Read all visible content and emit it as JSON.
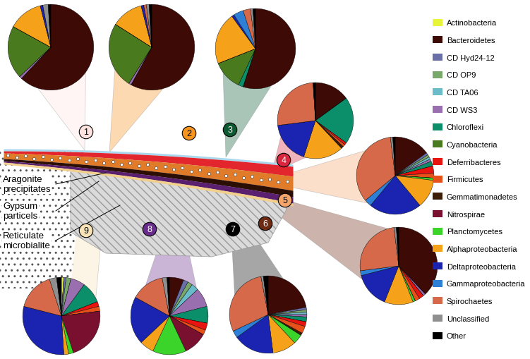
{
  "chart_data": [
    {
      "type": "pie",
      "title": "1",
      "legend": "center right",
      "categories": [
        "Actinobacteria",
        "Bacteroidetes",
        "CD Hyd24-12",
        "CD OP9",
        "CD TA06",
        "CD WS3",
        "Chloroflexi",
        "Cyanobacteria",
        "Deferribacteres",
        "Firmicutes",
        "Gemmatimonadetes",
        "Nitrospirae",
        "Planctomycetes",
        "Alphaproteobacteria",
        "Deltaproteobacteria",
        "Gammaproteobacteria",
        "Spirochaetes",
        "Unclassified",
        "Other"
      ],
      "colors": [
        "#e6f53a",
        "#3d0a05",
        "#6b6fa8",
        "#7aa86b",
        "#6bbcc9",
        "#9a6fb0",
        "#0a8f6a",
        "#4a7a1e",
        "#e8140f",
        "#e8501a",
        "#3b1e05",
        "#7a1030",
        "#3ad42a",
        "#f5a21a",
        "#1a24b0",
        "#2e7fd6",
        "#d6694a",
        "#8f8f8f",
        "#000000"
      ],
      "values": [
        0,
        62,
        0,
        0,
        0,
        1,
        0,
        20,
        0,
        0,
        0,
        0,
        0,
        13,
        1,
        0,
        0,
        2,
        1
      ]
    },
    {
      "type": "pie",
      "title": "2",
      "categories": [
        "Actinobacteria",
        "Bacteroidetes",
        "CD Hyd24-12",
        "CD OP9",
        "CD TA06",
        "CD WS3",
        "Chloroflexi",
        "Cyanobacteria",
        "Deferribacteres",
        "Firmicutes",
        "Gemmatimonadetes",
        "Nitrospirae",
        "Planctomycetes",
        "Alphaproteobacteria",
        "Deltaproteobacteria",
        "Gammaproteobacteria",
        "Spirochaetes",
        "Unclassified",
        "Other"
      ],
      "colors": [
        "#e6f53a",
        "#3d0a05",
        "#6b6fa8",
        "#7aa86b",
        "#6bbcc9",
        "#9a6fb0",
        "#0a8f6a",
        "#4a7a1e",
        "#e8140f",
        "#e8501a",
        "#3b1e05",
        "#7a1030",
        "#3ad42a",
        "#f5a21a",
        "#1a24b0",
        "#2e7fd6",
        "#d6694a",
        "#8f8f8f",
        "#000000"
      ],
      "values": [
        0,
        58,
        0,
        0,
        0,
        1,
        0,
        25,
        0,
        0,
        0,
        0,
        0,
        12,
        1,
        0,
        1,
        1,
        1
      ]
    },
    {
      "type": "pie",
      "title": "3",
      "categories": [
        "Actinobacteria",
        "Bacteroidetes",
        "CD Hyd24-12",
        "CD OP9",
        "CD TA06",
        "CD WS3",
        "Chloroflexi",
        "Cyanobacteria",
        "Deferribacteres",
        "Firmicutes",
        "Gemmatimonadetes",
        "Nitrospirae",
        "Planctomycetes",
        "Alphaproteobacteria",
        "Deltaproteobacteria",
        "Gammaproteobacteria",
        "Spirochaetes",
        "Unclassified",
        "Other"
      ],
      "colors": [
        "#e6f53a",
        "#3d0a05",
        "#6b6fa8",
        "#7aa86b",
        "#6bbcc9",
        "#9a6fb0",
        "#0a8f6a",
        "#4a7a1e",
        "#e8140f",
        "#e8501a",
        "#3b1e05",
        "#7a1030",
        "#3ad42a",
        "#f5a21a",
        "#1a24b0",
        "#2e7fd6",
        "#d6694a",
        "#8f8f8f",
        "#000000"
      ],
      "values": [
        0,
        55,
        0,
        0,
        0,
        0,
        2,
        12,
        0,
        0,
        0,
        0,
        0,
        21,
        1,
        4,
        3,
        1,
        1
      ]
    },
    {
      "type": "pie",
      "title": "4",
      "categories": [
        "Actinobacteria",
        "Bacteroidetes",
        "CD Hyd24-12",
        "CD OP9",
        "CD TA06",
        "CD WS3",
        "Chloroflexi",
        "Cyanobacteria",
        "Deferribacteres",
        "Firmicutes",
        "Gemmatimonadetes",
        "Nitrospirae",
        "Planctomycetes",
        "Alphaproteobacteria",
        "Deltaproteobacteria",
        "Gammaproteobacteria",
        "Spirochaetes",
        "Unclassified",
        "Other"
      ],
      "colors": [
        "#e6f53a",
        "#3d0a05",
        "#6b6fa8",
        "#7aa86b",
        "#6bbcc9",
        "#9a6fb0",
        "#0a8f6a",
        "#4a7a1e",
        "#e8140f",
        "#e8501a",
        "#3b1e05",
        "#7a1030",
        "#3ad42a",
        "#f5a21a",
        "#1a24b0",
        "#2e7fd6",
        "#d6694a",
        "#8f8f8f",
        "#000000"
      ],
      "values": [
        0,
        15,
        0,
        0,
        0,
        0,
        20,
        0,
        1,
        1,
        1,
        0,
        0,
        17,
        18,
        0,
        26,
        0,
        1
      ]
    },
    {
      "type": "pie",
      "title": "5",
      "categories": [
        "Actinobacteria",
        "Bacteroidetes",
        "CD Hyd24-12",
        "CD OP9",
        "CD TA06",
        "CD WS3",
        "Chloroflexi",
        "Cyanobacteria",
        "Deferribacteres",
        "Firmicutes",
        "Gemmatimonadetes",
        "Nitrospirae",
        "Planctomycetes",
        "Alphaproteobacteria",
        "Deltaproteobacteria",
        "Gammaproteobacteria",
        "Spirochaetes",
        "Unclassified",
        "Other"
      ],
      "colors": [
        "#e6f53a",
        "#3d0a05",
        "#6b6fa8",
        "#7aa86b",
        "#6bbcc9",
        "#9a6fb0",
        "#0a8f6a",
        "#4a7a1e",
        "#e8140f",
        "#e8501a",
        "#3b1e05",
        "#7a1030",
        "#3ad42a",
        "#f5a21a",
        "#1a24b0",
        "#2e7fd6",
        "#d6694a",
        "#8f8f8f",
        "#000000"
      ],
      "values": [
        0,
        15,
        1,
        1,
        1,
        1,
        2,
        0,
        3,
        2,
        0,
        0,
        1,
        12,
        22,
        3,
        34,
        1,
        1
      ]
    },
    {
      "type": "pie",
      "title": "6",
      "categories": [
        "Actinobacteria",
        "Bacteroidetes",
        "CD Hyd24-12",
        "CD OP9",
        "CD TA06",
        "CD WS3",
        "Chloroflexi",
        "Cyanobacteria",
        "Deferribacteres",
        "Firmicutes",
        "Gemmatimonadetes",
        "Nitrospirae",
        "Planctomycetes",
        "Alphaproteobacteria",
        "Deltaproteobacteria",
        "Gammaproteobacteria",
        "Spirochaetes",
        "Unclassified",
        "Other"
      ],
      "colors": [
        "#e6f53a",
        "#3d0a05",
        "#6b6fa8",
        "#7aa86b",
        "#6bbcc9",
        "#9a6fb0",
        "#0a8f6a",
        "#4a7a1e",
        "#e8140f",
        "#e8501a",
        "#3b1e05",
        "#7a1030",
        "#3ad42a",
        "#f5a21a",
        "#1a24b0",
        "#2e7fd6",
        "#d6694a",
        "#8f8f8f",
        "#000000"
      ],
      "values": [
        0,
        38,
        0,
        0,
        0,
        1,
        0,
        0,
        2,
        2,
        0,
        0,
        1,
        12,
        15,
        2,
        25,
        1,
        1
      ]
    },
    {
      "type": "pie",
      "title": "7",
      "categories": [
        "Actinobacteria",
        "Bacteroidetes",
        "CD Hyd24-12",
        "CD OP9",
        "CD TA06",
        "CD WS3",
        "Chloroflexi",
        "Cyanobacteria",
        "Deferribacteres",
        "Firmicutes",
        "Gemmatimonadetes",
        "Nitrospirae",
        "Planctomycetes",
        "Alphaproteobacteria",
        "Deltaproteobacteria",
        "Gammaproteobacteria",
        "Spirochaetes",
        "Unclassified",
        "Other"
      ],
      "colors": [
        "#e6f53a",
        "#3d0a05",
        "#6b6fa8",
        "#7aa86b",
        "#6bbcc9",
        "#9a6fb0",
        "#0a8f6a",
        "#4a7a1e",
        "#e8140f",
        "#e8501a",
        "#3b1e05",
        "#7a1030",
        "#3ad42a",
        "#f5a21a",
        "#1a24b0",
        "#2e7fd6",
        "#d6694a",
        "#8f8f8f",
        "#000000"
      ],
      "values": [
        0,
        22,
        1,
        1,
        1,
        1,
        2,
        0,
        2,
        3,
        1,
        0,
        4,
        10,
        17,
        3,
        29,
        1,
        2
      ]
    },
    {
      "type": "pie",
      "title": "8",
      "categories": [
        "Actinobacteria",
        "Bacteroidetes",
        "CD Hyd24-12",
        "CD OP9",
        "CD TA06",
        "CD WS3",
        "Chloroflexi",
        "Cyanobacteria",
        "Deferribacteres",
        "Firmicutes",
        "Gemmatimonadetes",
        "Nitrospirae",
        "Planctomycetes",
        "Alphaproteobacteria",
        "Deltaproteobacteria",
        "Gammaproteobacteria",
        "Spirochaetes",
        "Unclassified",
        "Other"
      ],
      "colors": [
        "#e6f53a",
        "#3d0a05",
        "#6b6fa8",
        "#7aa86b",
        "#6bbcc9",
        "#9a6fb0",
        "#0a8f6a",
        "#4a7a1e",
        "#e8140f",
        "#e8501a",
        "#3b1e05",
        "#7a1030",
        "#3ad42a",
        "#f5a21a",
        "#1a24b0",
        "#2e7fd6",
        "#d6694a",
        "#8f8f8f",
        "#000000"
      ],
      "values": [
        0,
        6,
        2,
        2,
        3,
        8,
        7,
        0,
        3,
        2,
        0,
        10,
        14,
        6,
        20,
        0,
        14,
        2,
        1
      ]
    },
    {
      "type": "pie",
      "title": "9",
      "categories": [
        "Actinobacteria",
        "Bacteroidetes",
        "CD Hyd24-12",
        "CD OP9",
        "CD TA06",
        "CD WS3",
        "Chloroflexi",
        "Cyanobacteria",
        "Deferribacteres",
        "Firmicutes",
        "Gemmatimonadetes",
        "Nitrospirae",
        "Planctomycetes",
        "Alphaproteobacteria",
        "Deltaproteobacteria",
        "Gammaproteobacteria",
        "Spirochaetes",
        "Unclassified",
        "Other"
      ],
      "colors": [
        "#e6f53a",
        "#3d0a05",
        "#6b6fa8",
        "#7aa86b",
        "#6bbcc9",
        "#9a6fb0",
        "#0a8f6a",
        "#4a7a1e",
        "#e8140f",
        "#e8501a",
        "#3b1e05",
        "#7a1030",
        "#3ad42a",
        "#f5a21a",
        "#1a24b0",
        "#2e7fd6",
        "#d6694a",
        "#8f8f8f",
        "#000000"
      ],
      "values": [
        1,
        0,
        1,
        2,
        0,
        6,
        9,
        0,
        2,
        2,
        0,
        22,
        2,
        2,
        30,
        0,
        16,
        3,
        2
      ]
    }
  ],
  "annotations": [
    "Aragonite\nprecipitates",
    "Gypsum\nparticels",
    "Reticulate\nmicrobialite"
  ]
}
